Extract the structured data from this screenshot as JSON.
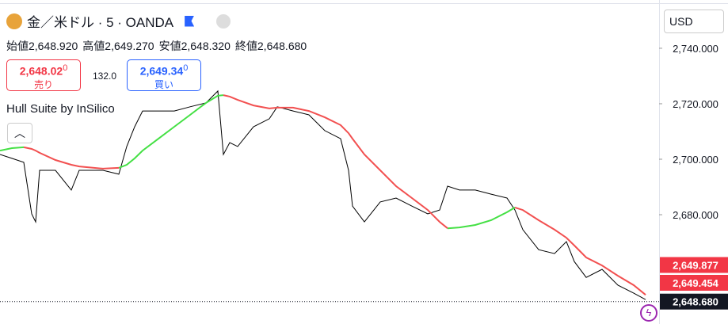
{
  "chart_data": {
    "type": "line",
    "title": "金／米ドル · 5 · OANDA",
    "ohlc": [
      {
        "label": "始値",
        "value": "2,648.920"
      },
      {
        "label": "高値",
        "value": "2,649.270"
      },
      {
        "label": "安値",
        "value": "2,648.320"
      },
      {
        "label": "終値",
        "value": "2,648.680"
      }
    ],
    "sell": {
      "price": "2,648.02",
      "small": "0",
      "label": "売り"
    },
    "spread": "132.0",
    "buy": {
      "price": "2,649.34",
      "small": "0",
      "label": "買い"
    },
    "indicator": "Hull Suite by InSilico",
    "currency": "USD",
    "x": [
      0,
      15,
      30,
      40,
      45,
      50,
      70,
      90,
      100,
      130,
      150,
      160,
      170,
      180,
      200,
      220,
      240,
      260,
      275,
      282,
      290,
      300,
      320,
      340,
      350,
      370,
      390,
      410,
      430,
      440,
      445,
      460,
      480,
      500,
      520,
      540,
      555,
      565,
      580,
      600,
      620,
      640,
      650,
      660,
      680,
      700,
      715,
      725,
      740,
      760,
      780,
      800,
      815
    ],
    "xlim": [
      0,
      832
    ],
    "series": [
      {
        "color": "#000000",
        "values": [
          2701.7,
          2700.3,
          2698.9,
          2680.3,
          2677.4,
          2696,
          2696,
          2688.9,
          2696,
          2696,
          2694.6,
          2704.6,
          2711.7,
          2717.4,
          2717.4,
          2717.4,
          2718.9,
          2720.3,
          2724.6,
          2701.7,
          2706,
          2704.6,
          2711.7,
          2714.6,
          2718.9,
          2717.4,
          2716,
          2710.3,
          2707.4,
          2696,
          2683.1,
          2677.4,
          2684.6,
          2686,
          2683.1,
          2680.3,
          2681.7,
          2690.3,
          2688.9,
          2688.9,
          2687.4,
          2686,
          2681.7,
          2674.6,
          2667.4,
          2666,
          2670.3,
          2663.1,
          2657.4,
          2660.3,
          2654.6,
          2651.7,
          2649.4
        ]
      },
      {
        "color": "#44e044",
        "values": [
          2703.1,
          2704,
          2704.3,
          null,
          null,
          null,
          null,
          null,
          null,
          null,
          2696.9,
          2698,
          2700.3,
          2703.1,
          2707.4,
          2711.7,
          2716,
          2720.3,
          2722.9,
          2723.1,
          null,
          null,
          null,
          null,
          null,
          null,
          null,
          null,
          null,
          null,
          null,
          null,
          null,
          null,
          null,
          null,
          null,
          2675.1,
          2675.4,
          2676.3,
          2678,
          2680.9,
          2682.6,
          null,
          null,
          null,
          null,
          null,
          null,
          null,
          null,
          null,
          null
        ]
      },
      {
        "color": "#f25050",
        "values": [
          null,
          null,
          2704.3,
          2703.7,
          2703.1,
          2702.3,
          2699.7,
          2698,
          2697.4,
          2696.6,
          2696.9,
          null,
          null,
          null,
          null,
          null,
          null,
          null,
          null,
          2723.1,
          2722.6,
          2721.4,
          2719.4,
          2718.3,
          2718.6,
          2718.6,
          2717.4,
          2715.1,
          2712.3,
          2709.4,
          2707.4,
          2701.7,
          2696,
          2690.3,
          2686,
          2681.7,
          2677.4,
          2675.1,
          null,
          null,
          null,
          null,
          2682.6,
          2681.7,
          2678,
          2674.6,
          2671.7,
          2668.9,
          2664.6,
          2661.7,
          2658,
          2654.6,
          2651.1
        ]
      }
    ],
    "ylim": [
      2640.6,
      2757.4
    ],
    "yticks": [
      {
        "value": 2740,
        "label": "2,740.000"
      },
      {
        "value": 2720,
        "label": "2,720.000"
      },
      {
        "value": 2700,
        "label": "2,700.000"
      },
      {
        "value": 2680,
        "label": "2,680.000"
      }
    ],
    "price_tags": [
      {
        "value": 2649.877,
        "label": "2,649.877",
        "color": "#f23645"
      },
      {
        "value": 2649.454,
        "label": "2,649.454",
        "color": "#f23645"
      },
      {
        "value": 2648.68,
        "label": "2,648.680",
        "color": "#131722"
      }
    ]
  }
}
